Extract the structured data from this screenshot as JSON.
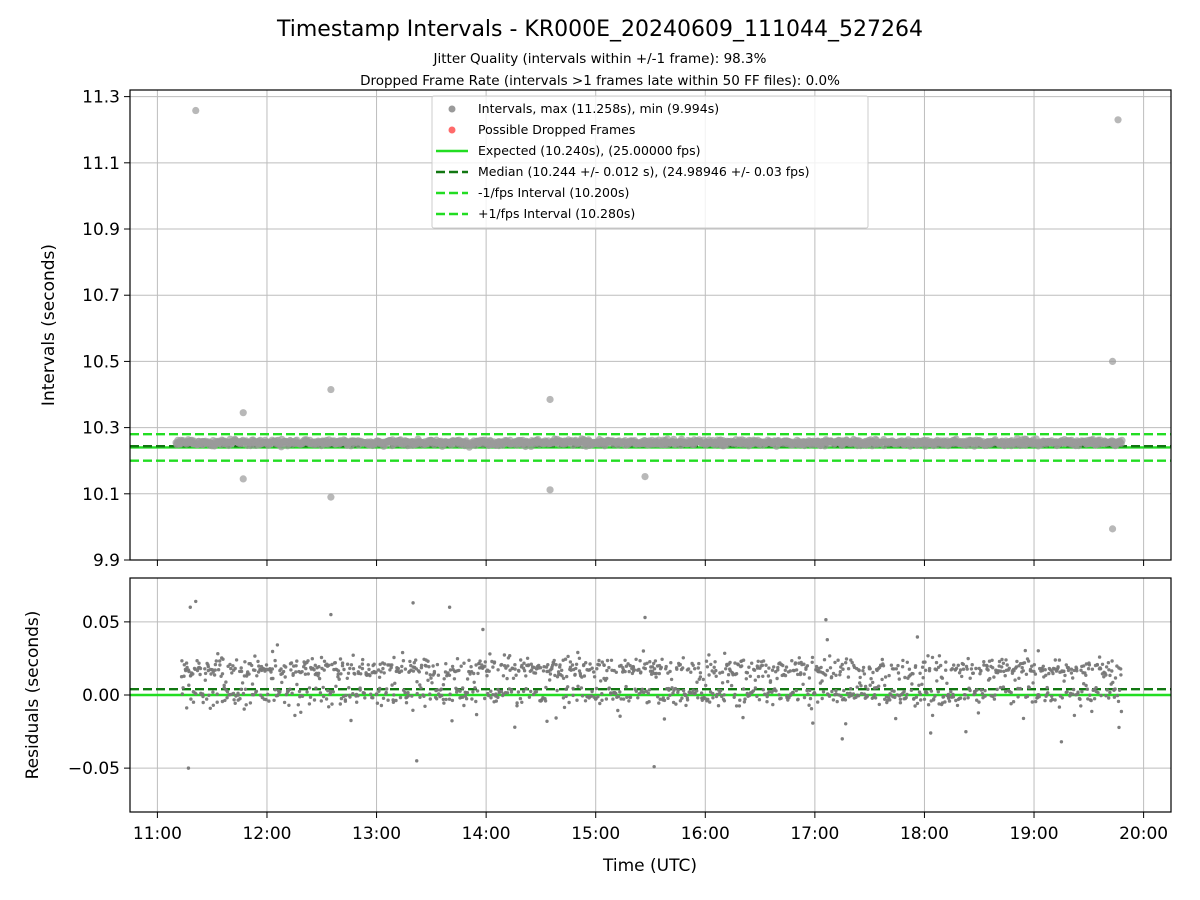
{
  "chart_data": [
    {
      "type": "scatter",
      "title": "Timestamp Intervals - KR000E_20240609_111044_527264",
      "subtitle_lines": [
        "Jitter Quality (intervals within +/-1 frame): 98.3%",
        "Dropped Frame Rate (intervals >1 frames late within 50 FF files): 0.0%"
      ],
      "xlabel": "",
      "ylabel": "Intervals (seconds)",
      "xlim": [
        "10:45",
        "20:15"
      ],
      "ylim": [
        9.9,
        11.32
      ],
      "x_ticks": [
        "11:00",
        "12:00",
        "13:00",
        "14:00",
        "15:00",
        "16:00",
        "17:00",
        "18:00",
        "19:00",
        "20:00"
      ],
      "y_ticks": [
        "9.9",
        "10.1",
        "10.3",
        "10.5",
        "10.7",
        "10.9",
        "11.1",
        "11.3"
      ],
      "grid": true,
      "legend": {
        "placement": "upper-center",
        "entries": [
          {
            "label": "Intervals, max (11.258s), min (9.994s)",
            "marker": "circle",
            "color": "#9a9a9a"
          },
          {
            "label": "Possible Dropped Frames",
            "marker": "circle",
            "color": "#ff6a6a"
          },
          {
            "label": "Expected (10.240s), (25.00000 fps)",
            "line": "solid",
            "color": "#22dd22"
          },
          {
            "label": "Median (10.244 +/- 0.012 s), (24.98946 +/- 0.03 fps)",
            "line": "dashed",
            "color": "#117711"
          },
          {
            "label": "-1/fps Interval (10.200s)",
            "line": "dashed",
            "color": "#22dd22"
          },
          {
            "label": "+1/fps Interval (10.280s)",
            "line": "dashed",
            "color": "#22dd22"
          }
        ]
      },
      "reference_lines": [
        {
          "name": "expected",
          "y": 10.24,
          "style": "solid",
          "color": "#22dd22"
        },
        {
          "name": "median",
          "y": 10.244,
          "style": "dashed",
          "color": "#117711"
        },
        {
          "name": "minus-one-fps",
          "y": 10.2,
          "style": "dashed",
          "color": "#22dd22"
        },
        {
          "name": "plus-one-fps",
          "y": 10.28,
          "style": "dashed",
          "color": "#22dd22"
        }
      ],
      "series": [
        {
          "name": "Intervals, max (11.258s), min (9.994s)",
          "color": "#9a9a9a",
          "x_range": [
            "11:10",
            "19:48"
          ],
          "band_center": 10.255,
          "band_spread": 0.03,
          "outliers": [
            {
              "x": "11:21",
              "y": 11.258
            },
            {
              "x": "19:46",
              "y": 11.23
            },
            {
              "x": "19:43",
              "y": 10.5
            },
            {
              "x": "12:35",
              "y": 10.415
            },
            {
              "x": "14:35",
              "y": 10.385
            },
            {
              "x": "11:47",
              "y": 10.345
            },
            {
              "x": "11:47",
              "y": 10.145
            },
            {
              "x": "12:35",
              "y": 10.09
            },
            {
              "x": "14:35",
              "y": 10.112
            },
            {
              "x": "15:27",
              "y": 10.152
            },
            {
              "x": "19:43",
              "y": 9.994
            }
          ]
        }
      ]
    },
    {
      "type": "scatter",
      "title": "",
      "xlabel": "Time (UTC)",
      "ylabel": "Residuals (seconds)",
      "xlim": [
        "10:45",
        "20:15"
      ],
      "ylim": [
        -0.08,
        0.08
      ],
      "x_ticks": [
        "11:00",
        "12:00",
        "13:00",
        "14:00",
        "15:00",
        "16:00",
        "17:00",
        "18:00",
        "19:00",
        "20:00"
      ],
      "y_ticks": [
        "0.05",
        "0.00",
        "−0.05"
      ],
      "grid": true,
      "reference_lines": [
        {
          "name": "zero",
          "y": 0,
          "style": "solid",
          "color": "#22dd22"
        },
        {
          "name": "median-offset",
          "y": 0.004,
          "style": "dashed",
          "color": "#117711"
        }
      ],
      "series": [
        {
          "name": "",
          "color": "#777777",
          "x_range": [
            "11:13",
            "19:48"
          ],
          "band_center": 0.012,
          "band_spread": 0.02,
          "outliers": [
            {
              "x": "11:18",
              "y": 0.06
            },
            {
              "x": "11:21",
              "y": 0.064
            },
            {
              "x": "12:35",
              "y": 0.055
            },
            {
              "x": "13:20",
              "y": 0.063
            },
            {
              "x": "13:40",
              "y": 0.06
            },
            {
              "x": "15:27",
              "y": 0.053
            },
            {
              "x": "11:17",
              "y": -0.05
            },
            {
              "x": "13:22",
              "y": -0.045
            },
            {
              "x": "15:32",
              "y": -0.049
            },
            {
              "x": "17:15",
              "y": -0.03
            },
            {
              "x": "19:15",
              "y": -0.032
            }
          ]
        }
      ]
    }
  ]
}
